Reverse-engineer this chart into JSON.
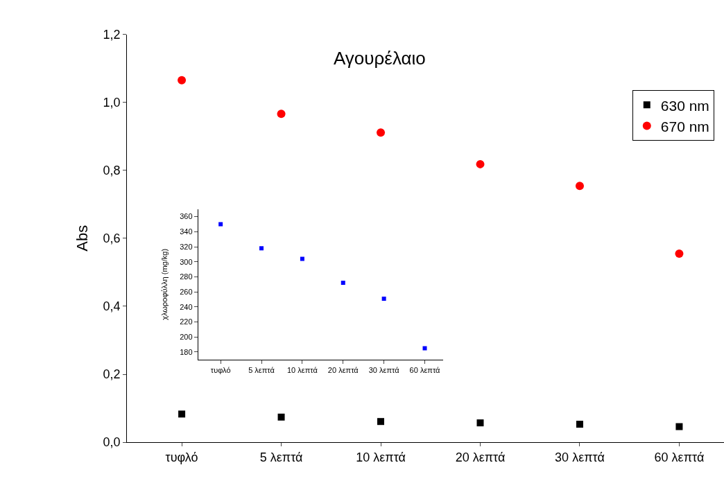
{
  "chart_data": [
    {
      "type": "scatter",
      "title": "Αγουρέλαιο",
      "ylabel": "Abs",
      "categories": [
        "τυφλό",
        "5 λεπτά",
        "10 λεπτά",
        "20 λεπτά",
        "30 λεπτά",
        "60 λεπτά"
      ],
      "ylim": [
        0,
        1.2
      ],
      "yticks": [
        {
          "value": 0,
          "label": "0,0"
        },
        {
          "value": 0.2,
          "label": "0,2"
        },
        {
          "value": 0.4,
          "label": "0,4"
        },
        {
          "value": 0.6,
          "label": "0,6"
        },
        {
          "value": 0.8,
          "label": "0,8"
        },
        {
          "value": 1.0,
          "label": "1,0"
        },
        {
          "value": 1.2,
          "label": "1,2"
        }
      ],
      "legend": "top right",
      "series": [
        {
          "name": "630 nm",
          "color": "#000000",
          "marker": "square",
          "values": [
            0.083,
            0.074,
            0.061,
            0.057,
            0.053,
            0.046
          ]
        },
        {
          "name": "670 nm",
          "color": "#ff0000",
          "marker": "circle",
          "values": [
            1.065,
            0.966,
            0.911,
            0.818,
            0.754,
            0.555
          ]
        }
      ]
    },
    {
      "type": "scatter",
      "ylabel": "χλωροφύλλη (mg/kg)",
      "categories": [
        "τυφλό",
        "5 λεπτά",
        "10 λεπτά",
        "20 λεπτά",
        "30 λεπτά",
        "60 λεπτά"
      ],
      "ylim": [
        170,
        370
      ],
      "yticks": [
        180,
        200,
        220,
        240,
        260,
        280,
        300,
        320,
        340,
        360
      ],
      "legend": false,
      "series": [
        {
          "color": "#0000ff",
          "marker": "square",
          "values": [
            350,
            318,
            304,
            272,
            251,
            185
          ]
        }
      ]
    }
  ]
}
